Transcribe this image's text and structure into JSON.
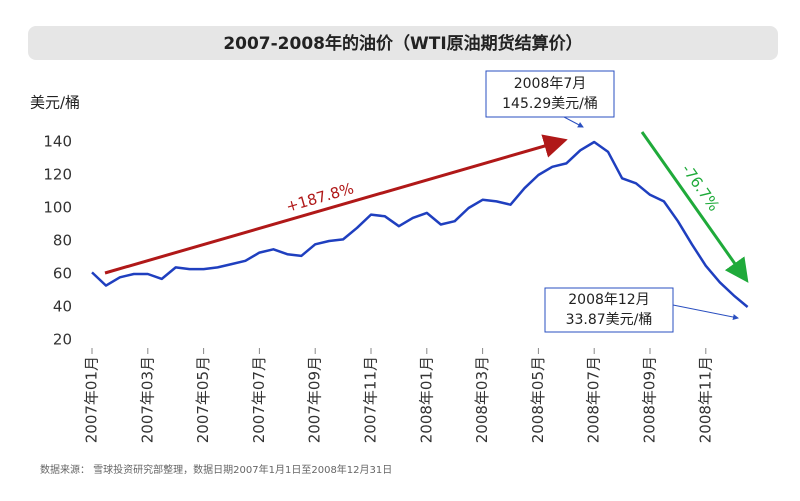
{
  "chart_data": {
    "type": "line",
    "title": "2007-2008年的油价（WTI原油期货结算价）",
    "y_label": "美元/桶",
    "categories": [
      "2007年01月",
      null,
      null,
      null,
      "2007年03月",
      null,
      null,
      null,
      "2007年05月",
      null,
      null,
      null,
      "2007年07月",
      null,
      null,
      null,
      "2007年09月",
      null,
      null,
      null,
      "2007年11月",
      null,
      null,
      null,
      "2008年01月",
      null,
      null,
      null,
      "2008年03月",
      null,
      null,
      null,
      "2008年05月",
      null,
      null,
      null,
      "2008年07月",
      null,
      null,
      null,
      "2008年09月",
      null,
      null,
      null,
      "2008年11月",
      null,
      null,
      null
    ],
    "series": [
      {
        "name": "WTI原油期货结算价",
        "color": "#1f3fbf",
        "values": [
          61,
          53,
          58,
          60,
          60,
          57,
          64,
          63,
          63,
          64,
          66,
          68,
          73,
          75,
          72,
          71,
          78,
          80,
          81,
          88,
          96,
          95,
          89,
          94,
          97,
          90,
          92,
          100,
          105,
          104,
          102,
          112,
          120,
          125,
          127,
          135,
          140,
          134,
          118,
          115,
          108,
          104,
          92,
          78,
          65,
          55,
          47,
          40
        ]
      }
    ],
    "ylim": [
      20,
      150
    ],
    "yticks": [
      20,
      40,
      60,
      80,
      100,
      120,
      140
    ],
    "annotations": {
      "peak": [
        "2008年7月",
        "145.29美元/桶"
      ],
      "low": [
        "2008年12月",
        "33.87美元/桶"
      ],
      "rise": "+187.8%",
      "fall": "-76.7%"
    },
    "source": "数据来源：  雪球投资研究部整理，数据日期2007年1月1日至2008年12月31日"
  }
}
